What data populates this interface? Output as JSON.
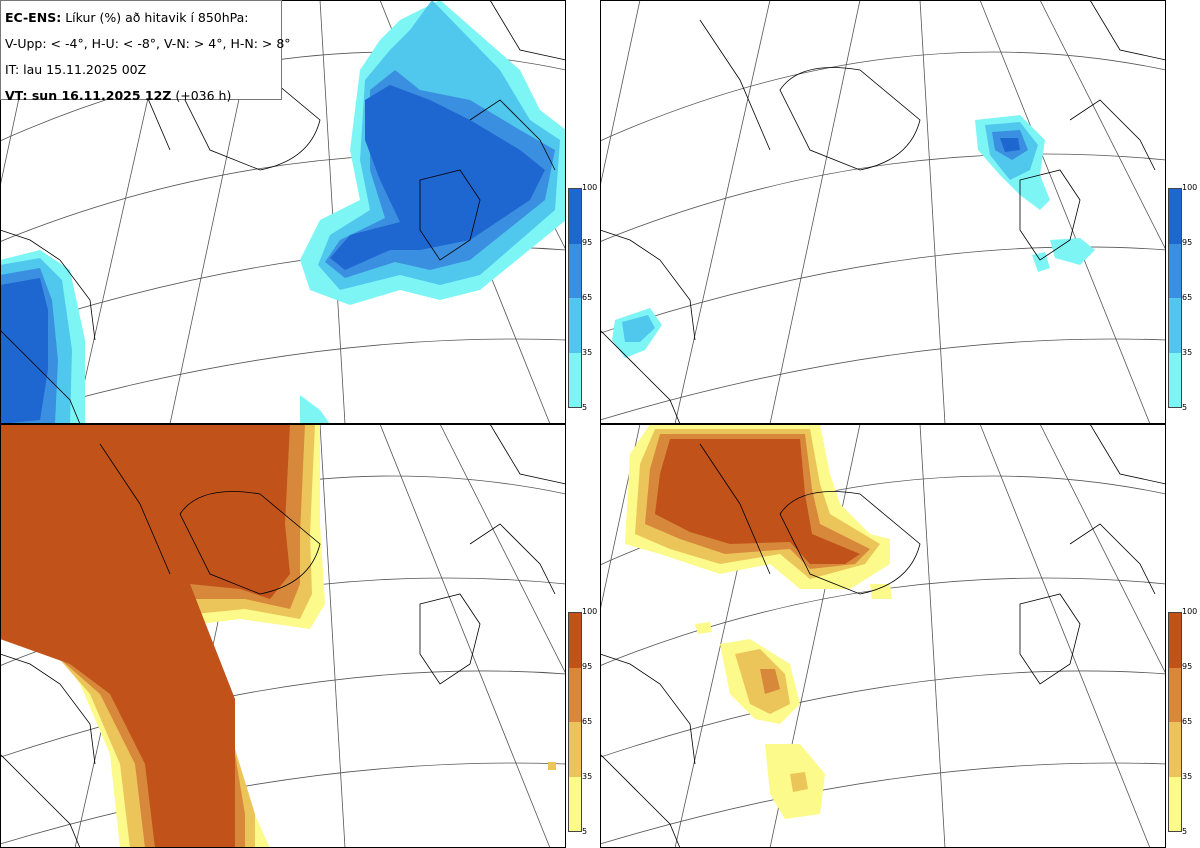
{
  "header": {
    "model": "EC-ENS:",
    "description": "Líkur (%) að hitavik í 850hPa:",
    "thresholds": "V-Upp: < -4°, H-U: < -8°, V-N: > 4°, H-N: > 8°",
    "init_time": "IT: lau 15.11.2025 00Z",
    "valid_label": "VT: sun 16.11.2025 12Z",
    "lead": "(+036 h)"
  },
  "colorbars": {
    "ticks": [
      "100",
      "95",
      "65",
      "35",
      "5"
    ],
    "cold_colors": [
      "#1e66d0",
      "#3b8fe0",
      "#50c8ee",
      "#7df5f5"
    ],
    "warm_colors": [
      "#c0521a",
      "#d8883a",
      "#ecc55a",
      "#fbfa8a"
    ]
  },
  "panels": [
    {
      "id": "top-left",
      "variable": "cold",
      "threshold": "< -4°"
    },
    {
      "id": "top-right",
      "variable": "cold",
      "threshold": "< -8°"
    },
    {
      "id": "bottom-left",
      "variable": "warm",
      "threshold": "> 4°"
    },
    {
      "id": "bottom-right",
      "variable": "warm",
      "threshold": "> 8°"
    }
  ]
}
